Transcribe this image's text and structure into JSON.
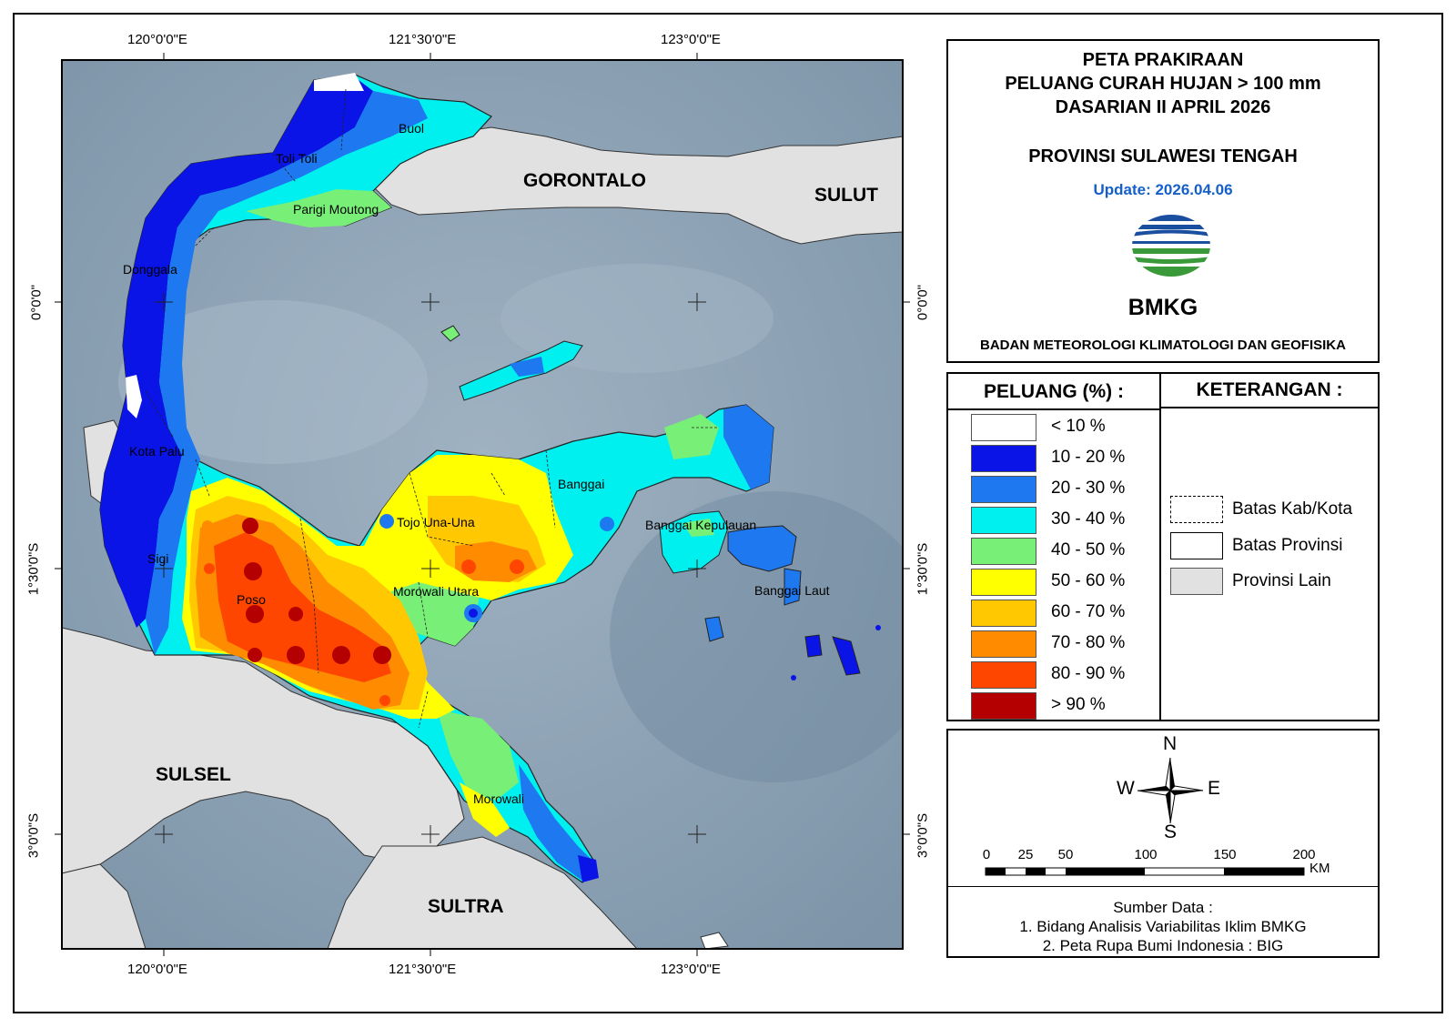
{
  "map": {
    "regions_other": [
      {
        "label": "GORONTALO"
      },
      {
        "label": "SULUT"
      },
      {
        "label": "SULSEL"
      },
      {
        "label": "SULTRA"
      }
    ],
    "places": [
      {
        "name": "Buol"
      },
      {
        "name": "Toli Toli"
      },
      {
        "name": "Parigi Moutong"
      },
      {
        "name": "Donggala"
      },
      {
        "name": "Kota Palu"
      },
      {
        "name": "Sigi"
      },
      {
        "name": "Poso"
      },
      {
        "name": "Tojo Una-Una"
      },
      {
        "name": "Morowali Utara"
      },
      {
        "name": "Banggai"
      },
      {
        "name": "Banggai Kepulauan"
      },
      {
        "name": "Banggai Laut"
      },
      {
        "name": "Morowali"
      }
    ],
    "lon_labels": [
      "120°0'0\"E",
      "121°30'0\"E",
      "123°0'0\"E"
    ],
    "lat_labels": [
      "0°0'0\"",
      "1°30'0\"S",
      "3°0'0\"S"
    ]
  },
  "title": {
    "line1": "PETA PRAKIRAAN",
    "line2": "PELUANG CURAH HUJAN > 100 mm",
    "line3": "DASARIAN II APRIL 2026",
    "province": "PROVINSI SULAWESI TENGAH",
    "update": "Update: 2026.04.06",
    "logo_text": "BMKG",
    "agency": "BADAN METEOROLOGI KLIMATOLOGI DAN GEOFISIKA"
  },
  "legend": {
    "header": "PELUANG (%) :",
    "items": [
      {
        "label": "< 10 %",
        "color": "#ffffff"
      },
      {
        "label": "10 - 20 %",
        "color": "#0a14e6"
      },
      {
        "label": "20 - 30 %",
        "color": "#1e78f0"
      },
      {
        "label": "30 - 40 %",
        "color": "#00f0f0"
      },
      {
        "label": "40 - 50 %",
        "color": "#78f078"
      },
      {
        "label": "50 - 60 %",
        "color": "#ffff00"
      },
      {
        "label": "60 - 70 %",
        "color": "#ffc800"
      },
      {
        "label": "70 - 80 %",
        "color": "#ff8c00"
      },
      {
        "label": "80 - 90 %",
        "color": "#ff4600"
      },
      {
        "label": "> 90 %",
        "color": "#b40000"
      }
    ]
  },
  "keterangan": {
    "header": "KETERANGAN :",
    "items": [
      {
        "label": "Batas Kab/Kota"
      },
      {
        "label": "Batas Provinsi"
      },
      {
        "label": "Provinsi Lain"
      }
    ]
  },
  "compass": {
    "n": "N",
    "s": "S",
    "e": "E",
    "w": "W"
  },
  "scale": {
    "ticks": [
      "0",
      "25",
      "50",
      "100",
      "150",
      "200"
    ],
    "unit": "KM"
  },
  "source": {
    "header": "Sumber Data :",
    "line1": "1. Bidang Analisis Variabilitas Iklim BMKG",
    "line2": "2. Peta Rupa Bumi Indonesia : BIG"
  },
  "colors": {
    "sea": "#8aa0b2",
    "other_province": "#e1e1e1",
    "update_text": "#1560c8",
    "logo_green": "#3a9a3a",
    "logo_blue": "#1a4fa0"
  }
}
